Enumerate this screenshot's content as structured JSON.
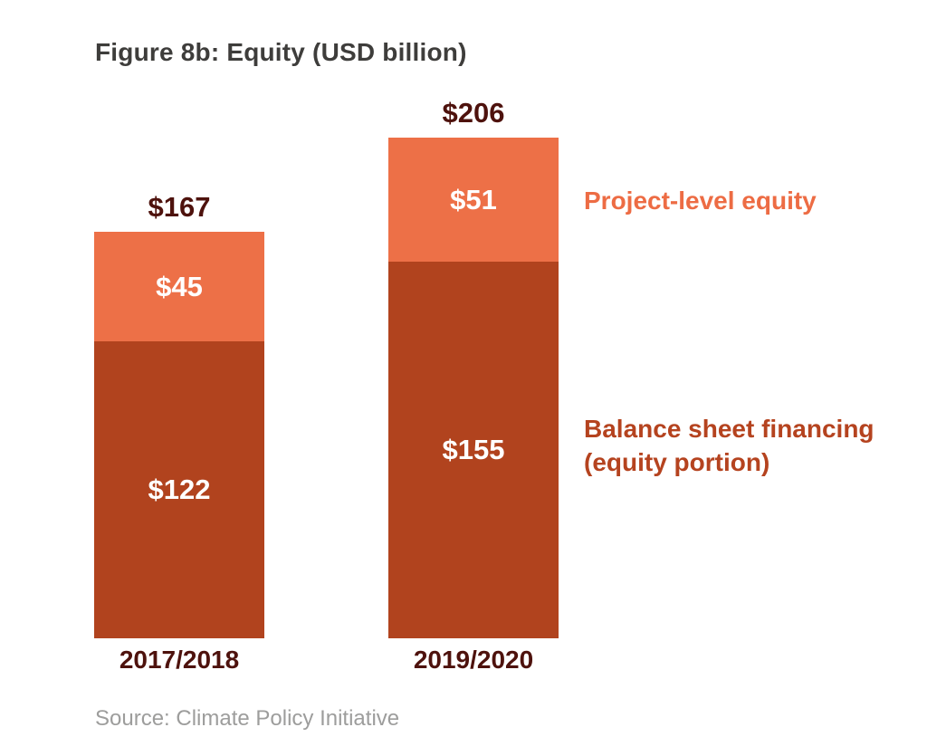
{
  "figure": {
    "title": "Figure 8b: Equity (USD billion)",
    "source": "Source: Climate Policy Initiative"
  },
  "legend": {
    "project": "Project-level equity",
    "balance": "Balance sheet financing\n(equity portion)"
  },
  "chart_data": {
    "type": "bar",
    "subtype": "stacked",
    "title": "Figure 8b: Equity (USD billion)",
    "categories": [
      "2017/2018",
      "2019/2020"
    ],
    "series": [
      {
        "name": "Project-level equity",
        "values": [
          45,
          51
        ],
        "color": "#ed7047",
        "label_color": "#ffffff"
      },
      {
        "name": "Balance sheet financing (equity portion)",
        "values": [
          122,
          155
        ],
        "color": "#b1431e",
        "label_color": "#ffffff"
      }
    ],
    "totals": [
      167,
      206
    ],
    "currency_prefix": "$",
    "unit": "USD billion",
    "ylim": [
      0,
      206
    ],
    "grid": false,
    "legend_position": "right",
    "total_label_color": "#4e120d",
    "category_label_color": "#4e120d",
    "source": "Source: Climate Policy Initiative"
  }
}
